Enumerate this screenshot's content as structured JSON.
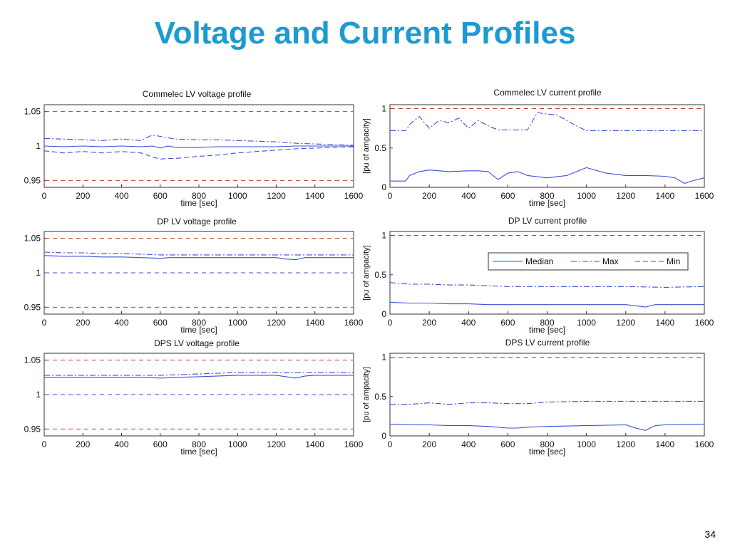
{
  "slide": {
    "title": "Voltage and Current Profiles",
    "page_number": "34"
  },
  "colors": {
    "title": "#1a9bd1",
    "series": "#3b4fd6",
    "limit": "#c0392b"
  },
  "chart_data": [
    {
      "type": "line",
      "title": "Commelec LV voltage profile",
      "xlabel": "time [sec]",
      "ylabel": "",
      "xlim": [
        0,
        1600
      ],
      "ylim": [
        0.94,
        1.06
      ],
      "xticks": [
        0,
        200,
        400,
        600,
        800,
        1000,
        1200,
        1400,
        1600
      ],
      "yticks": [
        0.95,
        1,
        1.05
      ],
      "ytick_labels": [
        "0.95",
        "1",
        "1.05"
      ],
      "reference_lines": [
        {
          "y": 1.05,
          "style": "dashed",
          "color": "#c0392b"
        },
        {
          "y": 0.95,
          "style": "dashed",
          "color": "#c0392b"
        }
      ],
      "legend": {
        "placement": "none",
        "entries": []
      },
      "series": [
        {
          "key": "median",
          "dash": "solid",
          "x": [
            0,
            100,
            200,
            300,
            400,
            500,
            560,
            600,
            640,
            680,
            800,
            900,
            1000,
            1100,
            1200,
            1300,
            1400,
            1500,
            1600
          ],
          "y": [
            1.0,
            0.999,
            1.0,
            0.999,
            1.0,
            0.999,
            1.0,
            0.997,
            1.0,
            0.998,
            0.998,
            0.999,
            0.999,
            0.999,
            0.999,
            1.0,
            1.0,
            1.0,
            1.0
          ]
        },
        {
          "key": "max",
          "dash": "dashdot",
          "x": [
            0,
            100,
            200,
            300,
            400,
            500,
            560,
            600,
            640,
            680,
            800,
            900,
            1000,
            1100,
            1200,
            1300,
            1400,
            1500,
            1600
          ],
          "y": [
            1.011,
            1.01,
            1.009,
            1.008,
            1.01,
            1.008,
            1.016,
            1.014,
            1.012,
            1.01,
            1.009,
            1.009,
            1.008,
            1.007,
            1.006,
            1.004,
            1.003,
            1.002,
            1.001
          ]
        },
        {
          "key": "min",
          "dash": "dashed",
          "x": [
            0,
            100,
            200,
            300,
            400,
            500,
            560,
            600,
            640,
            680,
            800,
            900,
            1000,
            1100,
            1200,
            1300,
            1400,
            1500,
            1600
          ],
          "y": [
            0.993,
            0.99,
            0.992,
            0.99,
            0.992,
            0.99,
            0.984,
            0.981,
            0.982,
            0.982,
            0.985,
            0.987,
            0.99,
            0.992,
            0.994,
            0.996,
            0.997,
            0.998,
            0.999
          ]
        }
      ]
    },
    {
      "type": "line",
      "title": "Commelec LV current profile",
      "xlabel": "time [sec]",
      "ylabel": "[pu of ampacity]",
      "xlim": [
        0,
        1600
      ],
      "ylim": [
        0,
        1.05
      ],
      "xticks": [
        0,
        200,
        400,
        600,
        800,
        1000,
        1200,
        1400,
        1600
      ],
      "yticks": [
        0,
        0.5,
        1
      ],
      "ytick_labels": [
        "0",
        "0.5",
        "1"
      ],
      "reference_lines": [
        {
          "y": 1,
          "style": "dashed",
          "color": "#c0392b"
        }
      ],
      "legend": {
        "placement": "none",
        "entries": []
      },
      "series": [
        {
          "key": "median",
          "dash": "solid",
          "x": [
            0,
            80,
            100,
            150,
            200,
            300,
            400,
            450,
            500,
            550,
            600,
            650,
            700,
            800,
            900,
            950,
            1000,
            1100,
            1200,
            1300,
            1400,
            1450,
            1500,
            1550,
            1600
          ],
          "y": [
            0.08,
            0.08,
            0.15,
            0.2,
            0.22,
            0.2,
            0.21,
            0.21,
            0.2,
            0.1,
            0.18,
            0.2,
            0.15,
            0.12,
            0.15,
            0.2,
            0.25,
            0.18,
            0.15,
            0.15,
            0.14,
            0.12,
            0.05,
            0.09,
            0.12
          ]
        },
        {
          "key": "max",
          "dash": "dashdot",
          "x": [
            0,
            80,
            100,
            150,
            200,
            250,
            300,
            350,
            400,
            450,
            500,
            550,
            600,
            650,
            700,
            750,
            800,
            850,
            900,
            950,
            1000,
            1100,
            1200,
            1300,
            1400,
            1500,
            1600
          ],
          "y": [
            0.72,
            0.72,
            0.8,
            0.9,
            0.75,
            0.85,
            0.82,
            0.88,
            0.75,
            0.85,
            0.78,
            0.73,
            0.73,
            0.73,
            0.73,
            0.95,
            0.93,
            0.92,
            0.85,
            0.78,
            0.72,
            0.72,
            0.72,
            0.72,
            0.72,
            0.72,
            0.72
          ]
        }
      ]
    },
    {
      "type": "line",
      "title": "DP LV voltage profile",
      "xlabel": "time [sec]",
      "ylabel": "",
      "xlim": [
        0,
        1600
      ],
      "ylim": [
        0.94,
        1.06
      ],
      "xticks": [
        0,
        200,
        400,
        600,
        800,
        1000,
        1200,
        1400,
        1600
      ],
      "yticks": [
        0.95,
        1,
        1.05
      ],
      "ytick_labels": [
        "0.95",
        "1",
        "1.05"
      ],
      "reference_lines": [
        {
          "y": 1.05,
          "style": "dashed",
          "color": "#c0392b"
        },
        {
          "y": 0.95,
          "style": "dashed",
          "color": "#c0392b"
        },
        {
          "y": 1.0,
          "style": "dashed",
          "color": "#3b4fd6"
        }
      ],
      "legend": {
        "placement": "none",
        "entries": []
      },
      "series": [
        {
          "key": "median",
          "dash": "solid",
          "x": [
            0,
            100,
            200,
            300,
            400,
            500,
            600,
            650,
            700,
            800,
            1000,
            1200,
            1250,
            1300,
            1350,
            1400,
            1600
          ],
          "y": [
            1.025,
            1.024,
            1.024,
            1.023,
            1.023,
            1.022,
            1.021,
            1.022,
            1.022,
            1.022,
            1.022,
            1.022,
            1.02,
            1.019,
            1.022,
            1.022,
            1.022
          ]
        },
        {
          "key": "max",
          "dash": "dashdot",
          "x": [
            0,
            100,
            200,
            300,
            400,
            500,
            600,
            700,
            800,
            1000,
            1200,
            1400,
            1600
          ],
          "y": [
            1.03,
            1.029,
            1.029,
            1.028,
            1.028,
            1.027,
            1.026,
            1.026,
            1.026,
            1.026,
            1.026,
            1.026,
            1.026
          ]
        }
      ]
    },
    {
      "type": "line",
      "title": "DP LV current profile",
      "xlabel": "time [sec]",
      "ylabel": "[pu of ampacity]",
      "xlim": [
        0,
        1600
      ],
      "ylim": [
        0,
        1.05
      ],
      "xticks": [
        0,
        200,
        400,
        600,
        800,
        1000,
        1200,
        1400,
        1600
      ],
      "yticks": [
        0,
        0.5,
        1
      ],
      "ytick_labels": [
        "0",
        "0.5",
        "1"
      ],
      "reference_lines": [
        {
          "y": 1,
          "style": "dashed",
          "color": "#c0392b"
        }
      ],
      "legend": {
        "placement": "top-right",
        "entries": [
          {
            "key": "median",
            "label": "Median",
            "dash": "solid"
          },
          {
            "key": "max",
            "label": "Max",
            "dash": "dashdot"
          },
          {
            "key": "min",
            "label": "Min",
            "dash": "dashed"
          }
        ]
      },
      "series": [
        {
          "key": "median",
          "dash": "solid",
          "x": [
            0,
            100,
            200,
            300,
            400,
            500,
            600,
            700,
            800,
            1000,
            1200,
            1300,
            1350,
            1400,
            1600
          ],
          "y": [
            0.15,
            0.14,
            0.14,
            0.13,
            0.13,
            0.12,
            0.12,
            0.12,
            0.12,
            0.12,
            0.12,
            0.09,
            0.12,
            0.12,
            0.12
          ]
        },
        {
          "key": "max",
          "dash": "dashdot",
          "x": [
            0,
            100,
            200,
            300,
            400,
            500,
            600,
            700,
            800,
            1000,
            1200,
            1400,
            1600
          ],
          "y": [
            0.4,
            0.38,
            0.38,
            0.37,
            0.37,
            0.36,
            0.35,
            0.35,
            0.35,
            0.35,
            0.35,
            0.34,
            0.35
          ]
        }
      ]
    },
    {
      "type": "line",
      "title": "DPS LV voltage profile",
      "xlabel": "time [sec]",
      "ylabel": "",
      "xlim": [
        0,
        1600
      ],
      "ylim": [
        0.94,
        1.06
      ],
      "xticks": [
        0,
        200,
        400,
        600,
        800,
        1000,
        1200,
        1400,
        1600
      ],
      "yticks": [
        0.95,
        1,
        1.05
      ],
      "ytick_labels": [
        "0.95",
        "1",
        "1.05"
      ],
      "reference_lines": [
        {
          "y": 1.05,
          "style": "dashed",
          "color": "#c0392b"
        },
        {
          "y": 0.95,
          "style": "dashed",
          "color": "#c0392b"
        },
        {
          "y": 1.0,
          "style": "dashed",
          "color": "#3b4fd6"
        }
      ],
      "legend": {
        "placement": "none",
        "entries": []
      },
      "series": [
        {
          "key": "median",
          "dash": "solid",
          "x": [
            0,
            100,
            200,
            300,
            400,
            500,
            600,
            700,
            800,
            900,
            1000,
            1200,
            1250,
            1300,
            1350,
            1400,
            1600
          ],
          "y": [
            1.025,
            1.025,
            1.025,
            1.025,
            1.025,
            1.025,
            1.024,
            1.025,
            1.026,
            1.027,
            1.028,
            1.028,
            1.026,
            1.024,
            1.027,
            1.028,
            1.028
          ]
        },
        {
          "key": "max",
          "dash": "dashdot",
          "x": [
            0,
            100,
            200,
            300,
            400,
            500,
            600,
            700,
            800,
            900,
            1000,
            1200,
            1400,
            1600
          ],
          "y": [
            1.028,
            1.028,
            1.028,
            1.028,
            1.028,
            1.028,
            1.028,
            1.029,
            1.03,
            1.031,
            1.032,
            1.032,
            1.032,
            1.032
          ]
        }
      ]
    },
    {
      "type": "line",
      "title": "DPS LV current profile",
      "xlabel": "time [sec]",
      "ylabel": "[pu of ampacity]",
      "xlim": [
        0,
        1600
      ],
      "ylim": [
        0,
        1.05
      ],
      "xticks": [
        0,
        200,
        400,
        600,
        800,
        1000,
        1200,
        1400,
        1600
      ],
      "yticks": [
        0,
        0.5,
        1
      ],
      "ytick_labels": [
        "0",
        "0.5",
        "1"
      ],
      "reference_lines": [
        {
          "y": 1,
          "style": "dashed",
          "color": "#c0392b"
        }
      ],
      "legend": {
        "placement": "none",
        "entries": []
      },
      "series": [
        {
          "key": "median",
          "dash": "solid",
          "x": [
            0,
            100,
            200,
            300,
            400,
            500,
            600,
            650,
            700,
            800,
            1000,
            1200,
            1250,
            1300,
            1350,
            1400,
            1600
          ],
          "y": [
            0.15,
            0.14,
            0.14,
            0.13,
            0.13,
            0.12,
            0.1,
            0.1,
            0.11,
            0.12,
            0.13,
            0.14,
            0.1,
            0.07,
            0.13,
            0.14,
            0.15
          ]
        },
        {
          "key": "max",
          "dash": "dashdot",
          "x": [
            0,
            100,
            200,
            300,
            400,
            500,
            600,
            700,
            800,
            1000,
            1200,
            1400,
            1600
          ],
          "y": [
            0.4,
            0.4,
            0.42,
            0.4,
            0.42,
            0.42,
            0.41,
            0.41,
            0.43,
            0.44,
            0.44,
            0.44,
            0.44
          ]
        }
      ]
    }
  ]
}
